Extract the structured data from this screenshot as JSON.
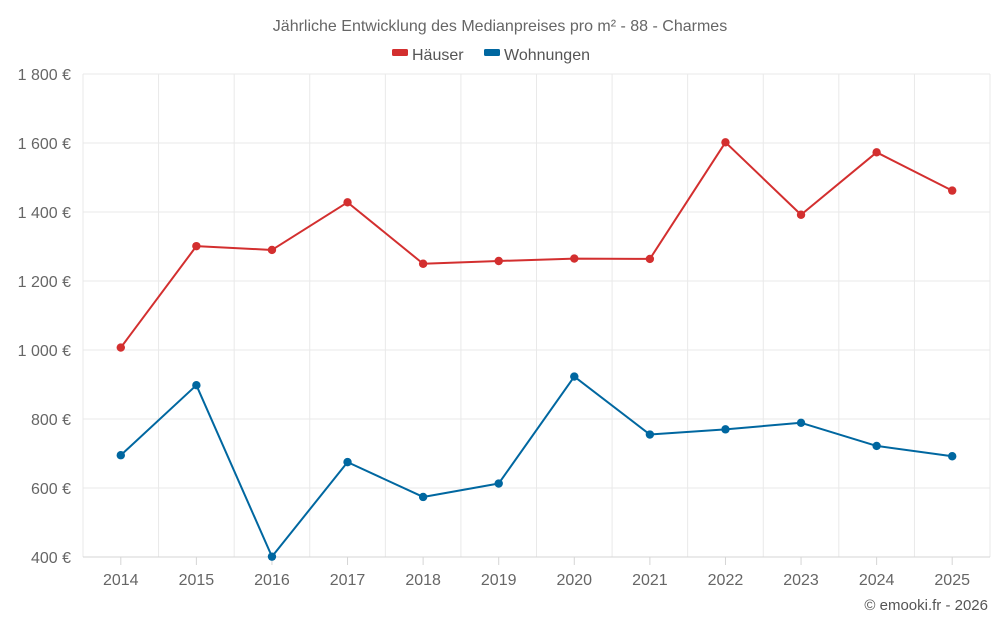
{
  "chart_data": {
    "type": "line",
    "title": "Jährliche Entwicklung des Medianpreises pro m² - 88 - Charmes",
    "xlabel": "",
    "ylabel": "",
    "categories": [
      "2014",
      "2015",
      "2016",
      "2017",
      "2018",
      "2019",
      "2020",
      "2021",
      "2022",
      "2023",
      "2024",
      "2025"
    ],
    "ylim": [
      400,
      1800
    ],
    "yticks": [
      400,
      600,
      800,
      1000,
      1200,
      1400,
      1600,
      1800
    ],
    "ytick_labels": [
      "400 €",
      "600 €",
      "800 €",
      "1 000 €",
      "1 200 €",
      "1 400 €",
      "1 600 €",
      "1 800 €"
    ],
    "grid": true,
    "legend_position": "top-center",
    "series": [
      {
        "name": "Häuser",
        "color": "#d32f2f",
        "values": [
          1007,
          1301,
          1290,
          1428,
          1250,
          1258,
          1265,
          1264,
          1602,
          1392,
          1573,
          1462
        ]
      },
      {
        "name": "Wohnungen",
        "color": "#0067a0",
        "values": [
          695,
          898,
          401,
          675,
          574,
          613,
          923,
          755,
          770,
          789,
          722,
          692
        ]
      }
    ]
  },
  "credit": "© emooki.fr - 2026"
}
